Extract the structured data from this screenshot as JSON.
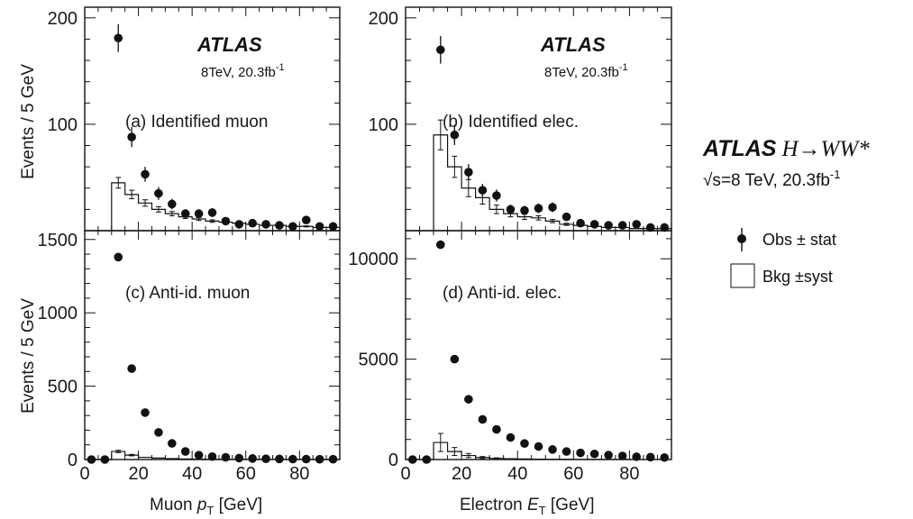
{
  "title": "ATLAS H→WW*",
  "title_parts": {
    "experiment": "ATLAS",
    "process": "H→WW*"
  },
  "energy_label": "=8 TeV, 20.3fb",
  "energy_sqrt": "√s",
  "energy_sup": "-1",
  "panel_tag": "ATLAS",
  "panel_lumi": "8TeV, 20.3fb",
  "panel_lumi_sup": "-1",
  "legend": [
    {
      "label": "Obs ± stat",
      "marker": "dot"
    },
    {
      "label": "Bkg ±syst",
      "marker": "open-box"
    }
  ],
  "y_axis_label": "Events / 5 GeV",
  "x_axis_labels": {
    "muon": {
      "pre": "Muon ",
      "var": "p",
      "sub": "T",
      "post": " [GeV]"
    },
    "electron": {
      "pre": "Electron ",
      "var": "E",
      "sub": "T",
      "post": " [GeV]"
    }
  },
  "chart_data": [
    {
      "type": "scatter",
      "panel": "(a) Identified muon",
      "xlabel": "Muon p_T [GeV]",
      "ylabel": "Events / 5 GeV",
      "xlim": [
        0,
        95
      ],
      "ylim": [
        0,
        210
      ],
      "yticks": [
        100,
        200
      ],
      "xticks": [
        0,
        20,
        40,
        60,
        80
      ],
      "x": [
        12.5,
        17.5,
        22.5,
        27.5,
        32.5,
        37.5,
        42.5,
        47.5,
        52.5,
        57.5,
        62.5,
        67.5,
        72.5,
        77.5,
        82.5,
        87.5,
        92.5
      ],
      "series": [
        {
          "name": "Obs ± stat",
          "values": [
            181,
            88,
            53,
            35,
            25,
            16,
            16,
            17,
            9,
            6,
            7,
            6,
            5,
            4,
            10,
            4,
            4
          ],
          "errors": [
            13,
            9.5,
            7,
            6,
            5,
            4,
            4,
            4,
            3,
            2.5,
            2.6,
            2.5,
            2.2,
            2,
            3,
            2,
            2
          ]
        },
        {
          "name": "Bkg ±syst",
          "values": [
            45,
            34,
            26,
            20,
            16,
            13,
            11,
            9,
            8,
            7,
            6,
            5,
            5,
            4,
            4,
            3,
            3
          ],
          "errors": [
            5,
            4,
            3,
            2.5,
            2,
            1.6,
            1.4,
            1.2,
            1,
            0.9,
            0.8,
            0.7,
            0.6,
            0.5,
            0.5,
            0.4,
            0.4
          ]
        }
      ]
    },
    {
      "type": "scatter",
      "panel": "(b) Identified elec.",
      "xlabel": "Electron E_T [GeV]",
      "ylabel": "Events / 5 GeV",
      "xlim": [
        0,
        95
      ],
      "ylim": [
        0,
        210
      ],
      "yticks": [
        100,
        200
      ],
      "xticks": [
        0,
        20,
        40,
        60,
        80
      ],
      "x": [
        12.5,
        17.5,
        22.5,
        27.5,
        32.5,
        37.5,
        42.5,
        47.5,
        52.5,
        57.5,
        62.5,
        67.5,
        72.5,
        77.5,
        82.5,
        87.5,
        92.5
      ],
      "series": [
        {
          "name": "Obs ± stat",
          "values": [
            170,
            90,
            55,
            38,
            33,
            20,
            19,
            21,
            22,
            13,
            7,
            6,
            5,
            5,
            6,
            3,
            3
          ],
          "errors": [
            13,
            9.5,
            7.5,
            6,
            5.7,
            4.5,
            4.3,
            4.5,
            4.6,
            3.6,
            2.6,
            2.5,
            2.2,
            2.2,
            2.5,
            1.8,
            1.8
          ]
        },
        {
          "name": "Bkg ±syst",
          "values": [
            90,
            60,
            40,
            31,
            20,
            16,
            13,
            12,
            9,
            6,
            5,
            4,
            3,
            3,
            2,
            2,
            2
          ],
          "errors": [
            14,
            10,
            8,
            6,
            4,
            3,
            2.5,
            2,
            1.5,
            1,
            0.8,
            0.6,
            0.5,
            0.5,
            0.4,
            0.4,
            0.4
          ]
        }
      ]
    },
    {
      "type": "scatter",
      "panel": "(c) Anti-id. muon",
      "xlabel": "Muon p_T [GeV]",
      "ylabel": "Events / 5 GeV",
      "xlim": [
        0,
        95
      ],
      "ylim": [
        0,
        1560
      ],
      "yticks": [
        0,
        500,
        1000,
        1500
      ],
      "xticks": [
        0,
        20,
        40,
        60,
        80
      ],
      "x": [
        2.5,
        7.5,
        12.5,
        17.5,
        22.5,
        27.5,
        32.5,
        37.5,
        42.5,
        47.5,
        52.5,
        57.5,
        62.5,
        67.5,
        72.5,
        77.5,
        82.5,
        87.5,
        92.5
      ],
      "series": [
        {
          "name": "Obs ± stat",
          "values": [
            0,
            0,
            1380,
            620,
            320,
            185,
            110,
            55,
            30,
            20,
            15,
            10,
            7,
            5,
            4,
            3,
            3,
            2,
            2
          ]
        },
        {
          "name": "Bkg ±syst",
          "values": [
            0,
            0,
            55,
            30,
            15,
            10,
            6,
            4,
            3,
            2,
            2,
            1,
            1,
            1,
            1,
            1,
            1,
            0,
            0
          ],
          "errors": [
            0,
            0,
            8,
            5,
            3,
            2,
            1,
            1,
            1,
            1,
            0,
            0,
            0,
            0,
            0,
            0,
            0,
            0,
            0
          ]
        }
      ]
    },
    {
      "type": "scatter",
      "panel": "(d) Anti-id. elec.",
      "xlabel": "Electron E_T [GeV]",
      "ylabel": "Events / 5 GeV",
      "xlim": [
        0,
        95
      ],
      "ylim": [
        0,
        11400
      ],
      "yticks": [
        0,
        5000,
        10000
      ],
      "xticks": [
        0,
        20,
        40,
        60,
        80
      ],
      "x": [
        2.5,
        7.5,
        12.5,
        17.5,
        22.5,
        27.5,
        32.5,
        37.5,
        42.5,
        47.5,
        52.5,
        57.5,
        62.5,
        67.5,
        72.5,
        77.5,
        82.5,
        87.5,
        92.5
      ],
      "series": [
        {
          "name": "Obs ± stat",
          "values": [
            0,
            0,
            10700,
            5000,
            3000,
            2000,
            1500,
            1100,
            800,
            650,
            500,
            400,
            330,
            280,
            220,
            180,
            140,
            120,
            100
          ]
        },
        {
          "name": "Bkg ±syst",
          "values": [
            0,
            0,
            850,
            400,
            200,
            100,
            60,
            40,
            30,
            20,
            15,
            10,
            8,
            6,
            5,
            4,
            3,
            3,
            2
          ],
          "errors": [
            0,
            0,
            450,
            200,
            100,
            50,
            25,
            15,
            10,
            8,
            6,
            4,
            3,
            2,
            2,
            2,
            1,
            1,
            1
          ]
        }
      ]
    }
  ]
}
